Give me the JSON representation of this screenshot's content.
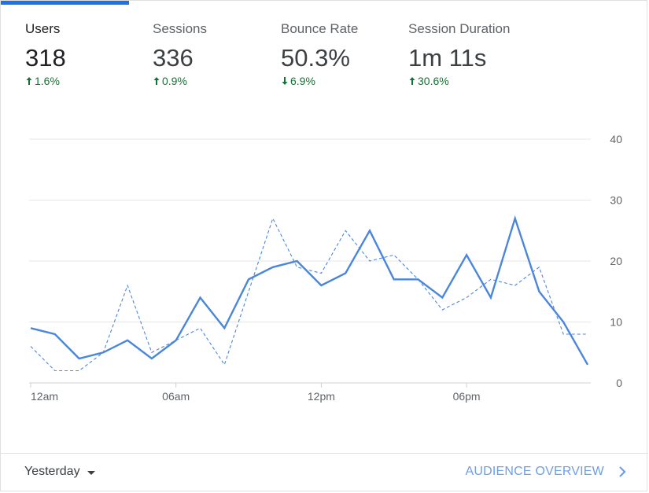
{
  "metrics": [
    {
      "label": "Users",
      "value": "318",
      "delta": "1.6%",
      "direction": "up",
      "active": true
    },
    {
      "label": "Sessions",
      "value": "336",
      "delta": "0.9%",
      "direction": "up",
      "active": false
    },
    {
      "label": "Bounce Rate",
      "value": "50.3%",
      "delta": "6.9%",
      "direction": "down",
      "active": false
    },
    {
      "label": "Session Duration",
      "value": "1m 11s",
      "delta": "30.6%",
      "direction": "up",
      "active": false
    }
  ],
  "colors": {
    "accent": "#1a73e8",
    "line": "#4a86db",
    "positive": "#137333",
    "grid": "#e0e0e0"
  },
  "chart_data": {
    "type": "line",
    "x": [
      0,
      1,
      2,
      3,
      4,
      5,
      6,
      7,
      8,
      9,
      10,
      11,
      12,
      13,
      14,
      15,
      16,
      17,
      18,
      19,
      20,
      21,
      22,
      23
    ],
    "x_tick_labels": [
      {
        "x": 0,
        "label": "12am"
      },
      {
        "x": 6,
        "label": "06am"
      },
      {
        "x": 12,
        "label": "12pm"
      },
      {
        "x": 18,
        "label": "06pm"
      }
    ],
    "series": [
      {
        "style": "solid",
        "values": [
          9,
          8,
          4,
          5,
          7,
          4,
          7,
          14,
          9,
          17,
          19,
          20,
          16,
          18,
          25,
          17,
          17,
          14,
          21,
          14,
          27,
          15,
          10,
          3
        ]
      },
      {
        "style": "dashed",
        "values": [
          6,
          2,
          2,
          5,
          16,
          5,
          7,
          9,
          3,
          15,
          27,
          19,
          18,
          25,
          20,
          21,
          17,
          12,
          14,
          17,
          16,
          19,
          8,
          8
        ]
      }
    ],
    "yticks": [
      0,
      10,
      20,
      30,
      40
    ],
    "ylim": [
      0,
      40
    ],
    "grid": true,
    "y_axis_side": "right"
  },
  "footer": {
    "date_range": "Yesterday",
    "link": "AUDIENCE OVERVIEW"
  }
}
